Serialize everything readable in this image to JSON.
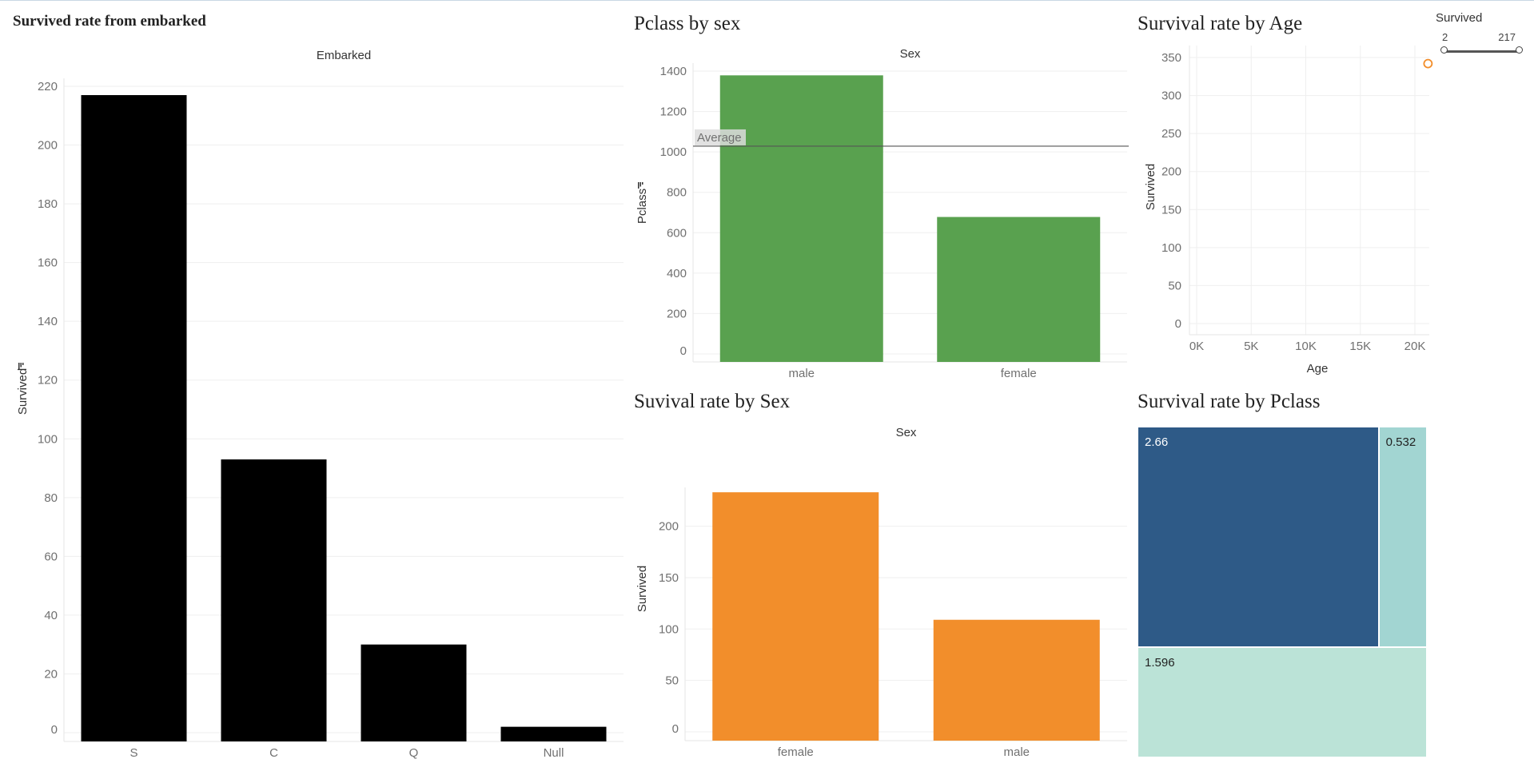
{
  "filter": {
    "title": "Survived",
    "min": "2",
    "max": "217"
  },
  "chart_data": [
    {
      "id": "embarked",
      "type": "bar",
      "title": "Survived rate from embarked",
      "header": "Embarked",
      "xlabel": "",
      "ylabel": "Survived",
      "categories": [
        "S",
        "C",
        "Q",
        "Null"
      ],
      "values": [
        217,
        93,
        30,
        2
      ],
      "ylim": [
        0,
        220
      ],
      "yticks": [
        0,
        20,
        40,
        60,
        80,
        100,
        120,
        140,
        160,
        180,
        200,
        220
      ],
      "color": "#000000",
      "grid": true
    },
    {
      "id": "pclass_sex",
      "type": "bar",
      "title": "Pclass by sex",
      "header": "Sex",
      "xlabel": "",
      "ylabel": "Pclass",
      "categories": [
        "male",
        "female"
      ],
      "values": [
        1379,
        678
      ],
      "ylim": [
        0,
        1400
      ],
      "yticks": [
        0,
        200,
        400,
        600,
        800,
        1000,
        1200,
        1400
      ],
      "reference_line": {
        "label": "Average",
        "value": 1028.5
      },
      "color": "#59a14f",
      "grid": true
    },
    {
      "id": "age",
      "type": "scatter",
      "title": "Survival rate by Age",
      "xlabel": "Age",
      "ylabel": "Survived",
      "xticks": [
        0,
        5000,
        10000,
        15000,
        20000
      ],
      "xtick_labels": [
        "0K",
        "5K",
        "10K",
        "15K",
        "20K"
      ],
      "yticks": [
        0,
        50,
        100,
        150,
        200,
        250,
        300,
        350
      ],
      "xlim": [
        0,
        22000
      ],
      "ylim": [
        0,
        350
      ],
      "points": [
        {
          "x": 21200,
          "y": 342
        }
      ],
      "color": "#f28e2b",
      "grid": true
    },
    {
      "id": "survival_sex",
      "type": "bar",
      "title": "Suvival rate by Sex",
      "header": "Sex",
      "xlabel": "",
      "ylabel": "Survived",
      "categories": [
        "female",
        "male"
      ],
      "values": [
        233,
        109
      ],
      "ylim": [
        0,
        230
      ],
      "yticks": [
        0,
        50,
        100,
        150,
        200
      ],
      "color": "#f28e2b",
      "grid": true
    },
    {
      "id": "pclass_treemap",
      "type": "treemap",
      "title": "Survival rate by Pclass",
      "cells": [
        {
          "label": "2.66",
          "value": 2.66,
          "color": "#2e5a87",
          "text_color": "#ffffff"
        },
        {
          "label": "0.532",
          "value": 0.532,
          "color": "#a2d5d2",
          "text_color": "#222222"
        },
        {
          "label": "1.596",
          "value": 1.596,
          "color": "#bbe3d7",
          "text_color": "#222222"
        }
      ]
    }
  ]
}
